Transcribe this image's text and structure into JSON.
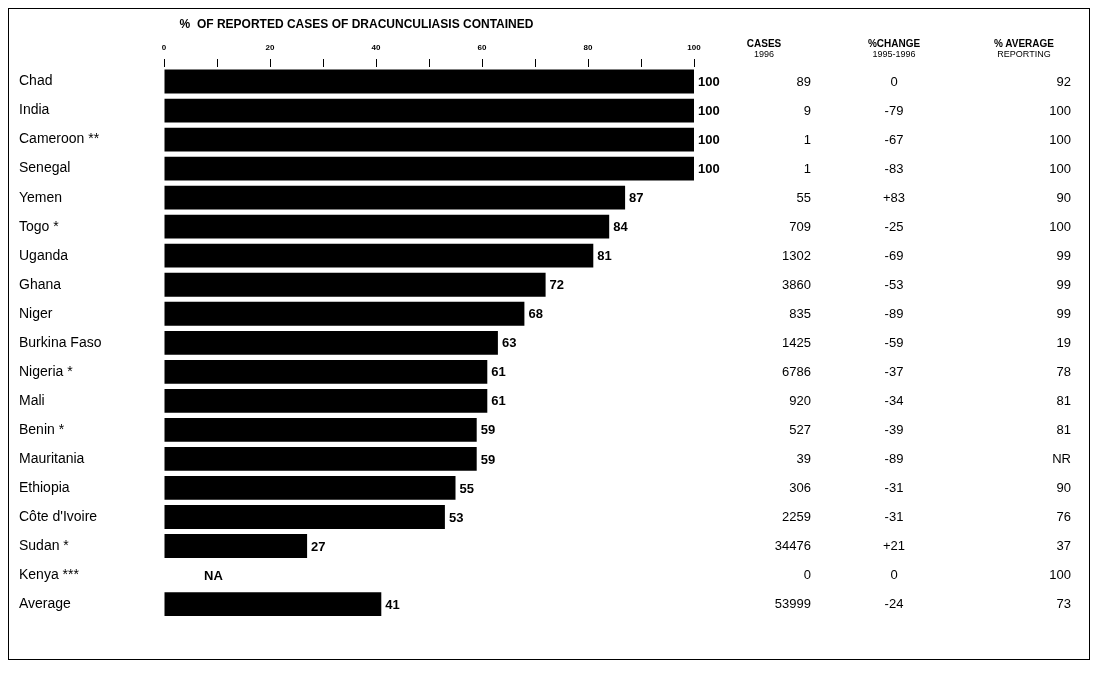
{
  "chart_data": [
    {
      "type": "bar",
      "orientation": "horizontal",
      "title": "%  OF REPORTED CASES OF DRACUNCULIASIS CONTAINED",
      "categories": [
        "Chad",
        "India",
        "Cameroon **",
        "Senegal",
        "Yemen",
        "Togo *",
        "Uganda",
        "Ghana",
        "Niger",
        "Burkina Faso",
        "Nigeria *",
        "Mali",
        "Benin *",
        "Mauritania",
        "Ethiopia",
        "Côte d'Ivoire",
        "Sudan *",
        "Kenya ***",
        "Average"
      ],
      "values": [
        100,
        100,
        100,
        100,
        87,
        84,
        81,
        72,
        68,
        63,
        61,
        61,
        59,
        59,
        55,
        53,
        27,
        null,
        41
      ],
      "value_labels": [
        "100",
        "100",
        "100",
        "100",
        "87",
        "84",
        "81",
        "72",
        "68",
        "63",
        "61",
        "61",
        "59",
        "59",
        "55",
        "53",
        "27",
        "NA",
        "41"
      ],
      "color": "#000000",
      "xlim": [
        0,
        100
      ],
      "xticks": [
        0,
        {
          "value": 10,
          "label": null
        },
        20,
        {
          "value": 30,
          "label": null
        },
        40,
        {
          "value": 50,
          "label": null
        },
        60,
        {
          "value": 70,
          "label": null
        },
        80,
        {
          "value": 90,
          "label": null
        },
        100
      ],
      "grid": false,
      "legend": false
    },
    {
      "type": "other",
      "title": "CASES",
      "subtitle": "1996",
      "annotations": [
        "89",
        "9",
        "1",
        "1",
        "55",
        "709",
        "1302",
        "3860",
        "835",
        "1425",
        "6786",
        "920",
        "527",
        "39",
        "306",
        "2259",
        "34476",
        "0",
        "53999"
      ]
    },
    {
      "type": "other",
      "title": "%CHANGE",
      "subtitle": "1995-1996",
      "annotations": [
        "0",
        "-79",
        "-67",
        "-83",
        "+83",
        "-25",
        "-69",
        "-53",
        "-89",
        "-59",
        "-37",
        "-34",
        "-39",
        "-89",
        "-31",
        "-31",
        "+21",
        "0",
        "-24"
      ]
    },
    {
      "type": "other",
      "title": "% AVERAGE",
      "subtitle": "REPORTING",
      "annotations": [
        "92",
        "100",
        "100",
        "100",
        "90",
        "100",
        "99",
        "99",
        "99",
        "19",
        "78",
        "81",
        "81",
        "NR",
        "90",
        "76",
        "37",
        "100",
        "73"
      ]
    }
  ]
}
